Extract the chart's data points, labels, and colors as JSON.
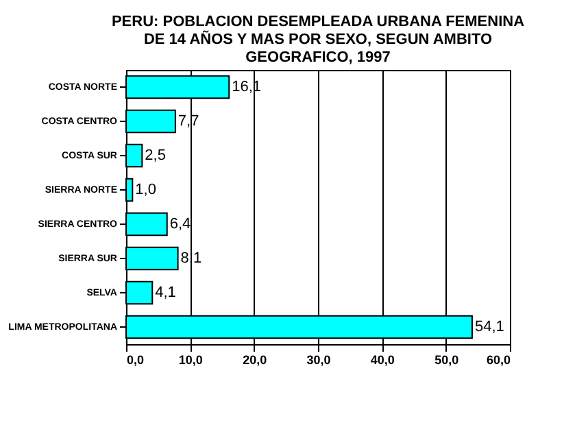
{
  "chart_data": {
    "type": "bar",
    "orientation": "horizontal",
    "title": [
      "PERU: POBLACION DESEMPLEADA URBANA FEMENINA",
      "DE 14 AÑOS Y MAS POR SEXO, SEGUN AMBITO",
      "GEOGRAFICO, 1997"
    ],
    "categories": [
      "COSTA NORTE",
      "COSTA CENTRO",
      "COSTA SUR",
      "SIERRA NORTE",
      "SIERRA CENTRO",
      "SIERRA SUR",
      "SELVA",
      "LIMA METROPOLITANA"
    ],
    "values": [
      16.1,
      7.7,
      2.5,
      1.0,
      6.4,
      8.1,
      4.1,
      54.1
    ],
    "value_labels": [
      "16,1",
      "7,7",
      "2,5",
      "1,0",
      "6,4",
      "8,1",
      "4,1",
      "54,1"
    ],
    "color": "#00ffff",
    "xlim": [
      0,
      60
    ],
    "xticks": [
      {
        "value": 0,
        "label": "0,0"
      },
      {
        "value": 10,
        "label": "10,0"
      },
      {
        "value": 20,
        "label": "20,0"
      },
      {
        "value": 30,
        "label": "30,0"
      },
      {
        "value": 40,
        "label": "40,0"
      },
      {
        "value": 50,
        "label": "50,0"
      },
      {
        "value": 60,
        "label": "60,0"
      }
    ],
    "grid": "x"
  }
}
